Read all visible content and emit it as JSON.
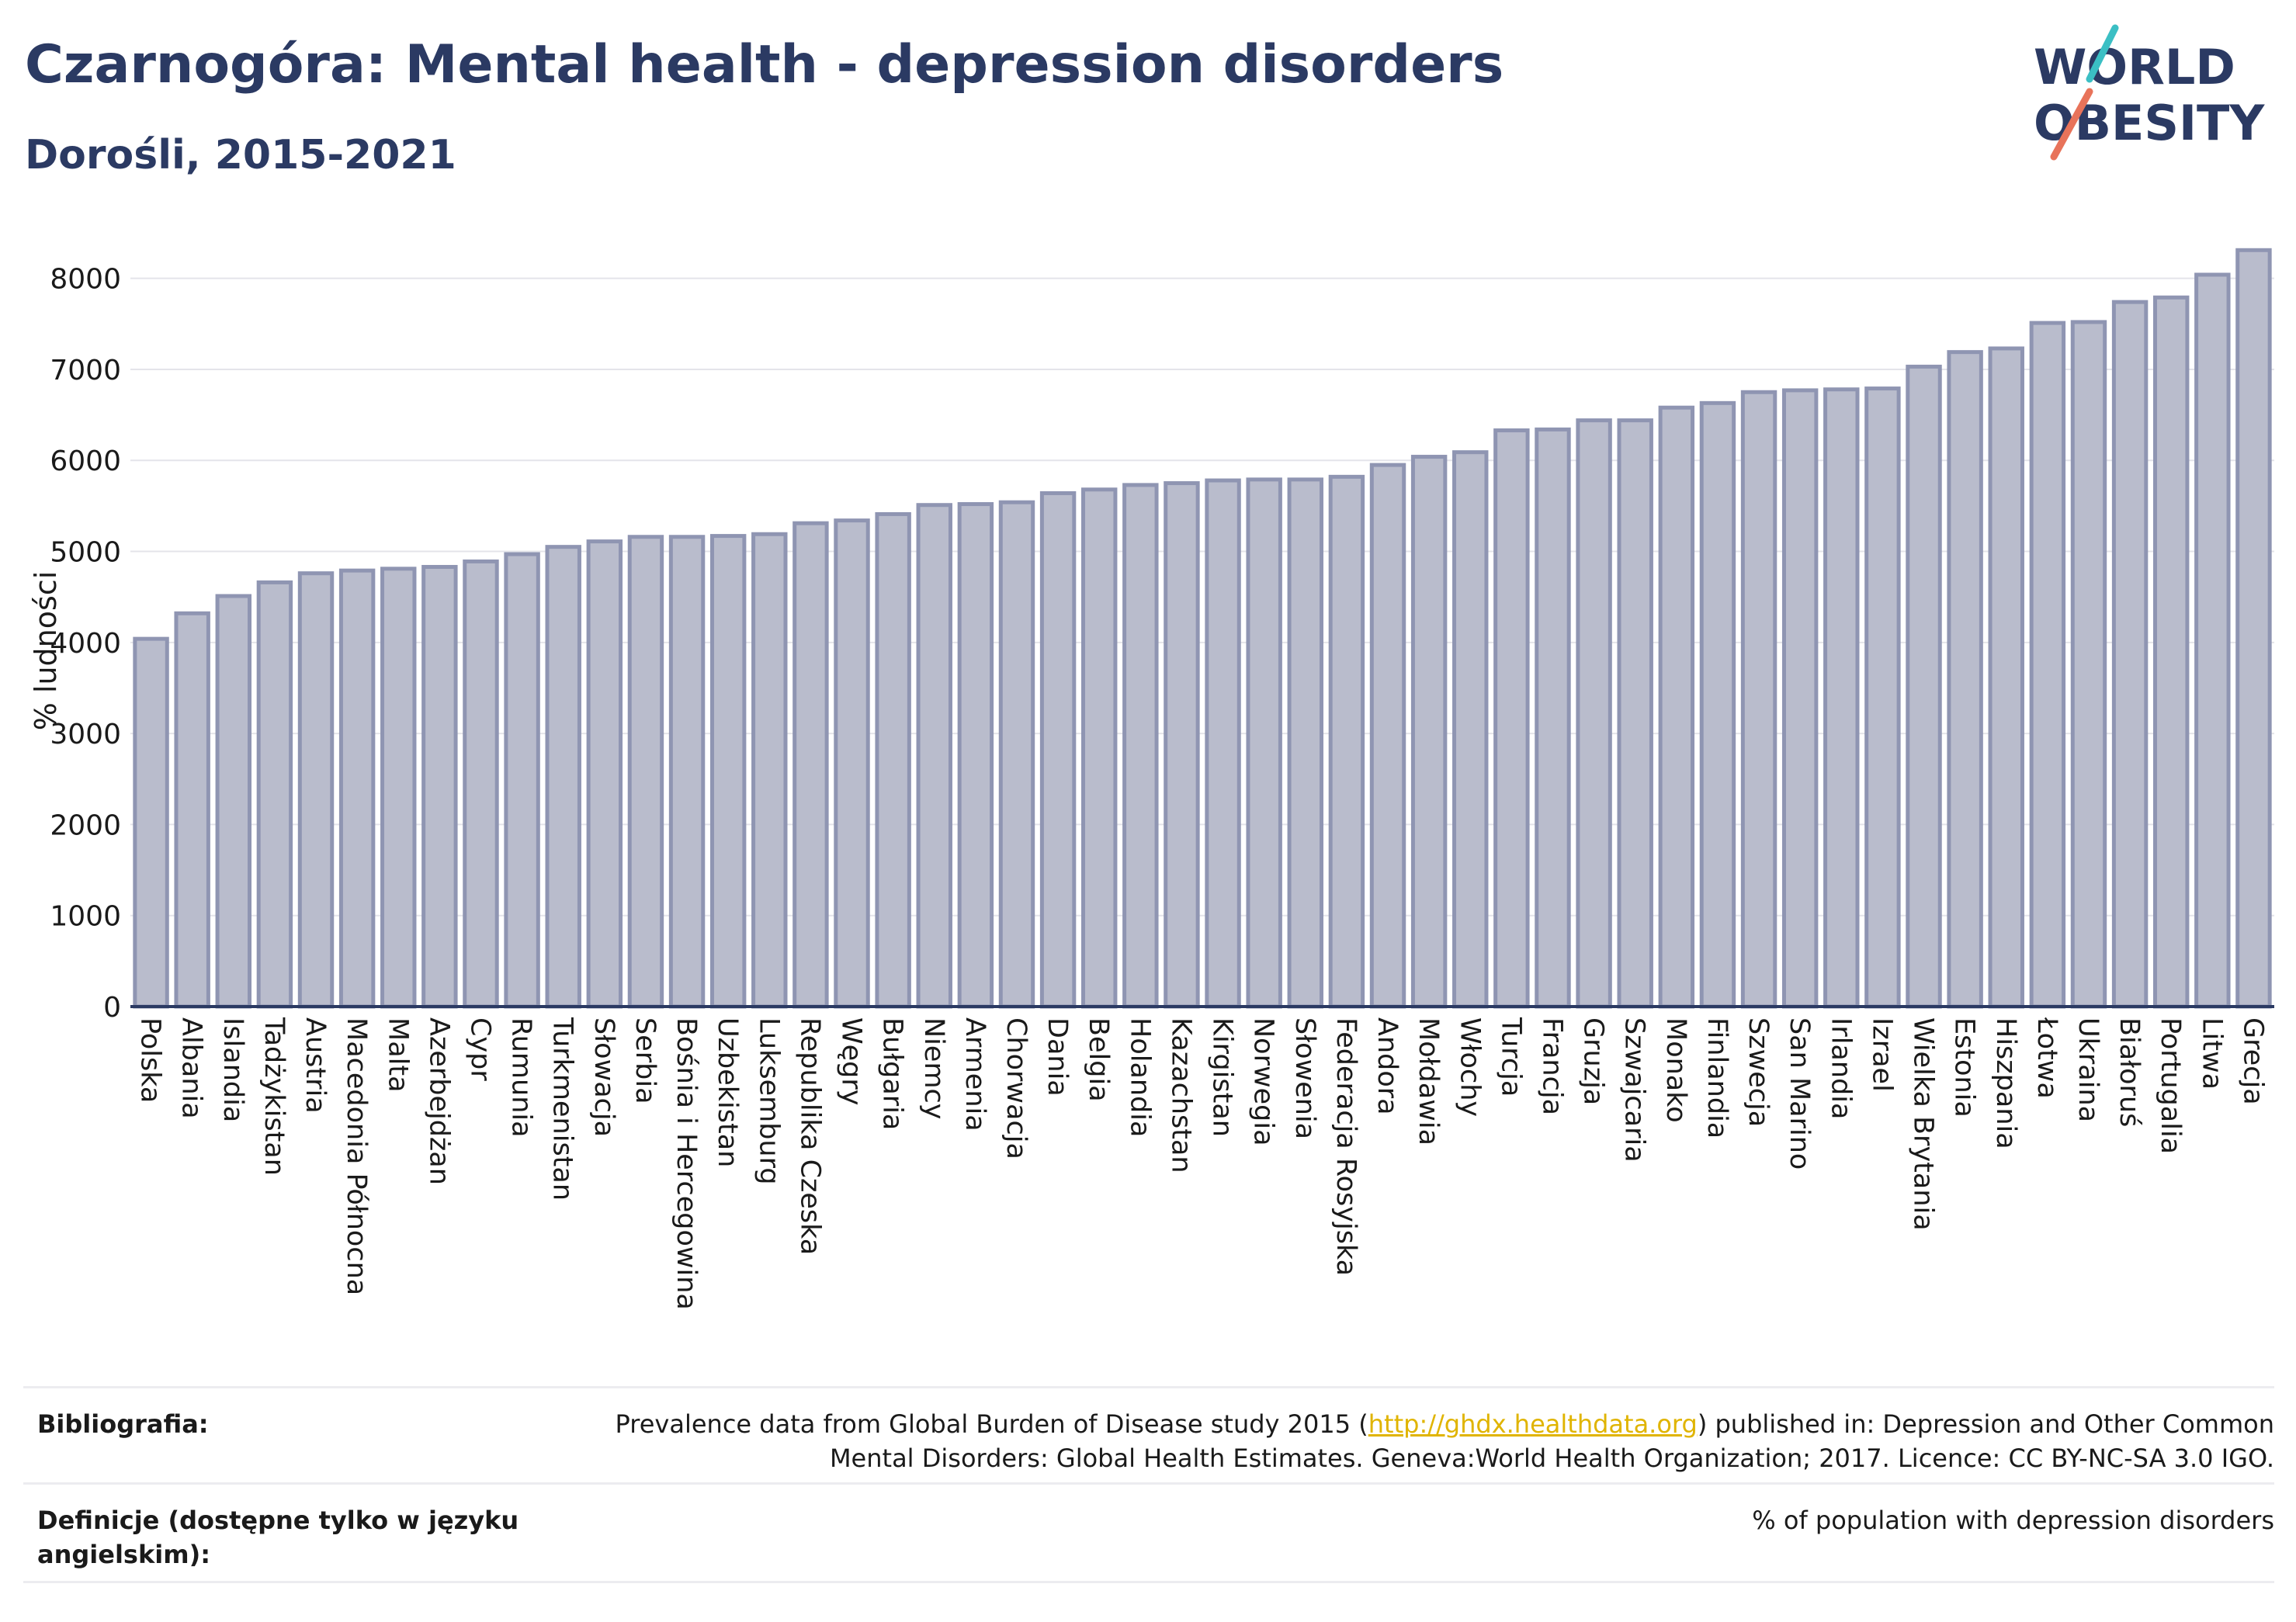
{
  "header": {
    "title": "Czarnogóra: Mental health - depression disorders",
    "subtitle": "Dorośli, 2015-2021"
  },
  "logo": {
    "line1": "WORLD",
    "line2": "OBESITY",
    "accent_teal": "#3bbfc4",
    "accent_coral": "#e8735a",
    "color": "#2b3a63"
  },
  "chart_data": {
    "type": "bar",
    "title": "Czarnogóra: Mental health - depression disorders",
    "subtitle": "Dorośli, 2015-2021",
    "xlabel": "",
    "ylabel": "% ludności",
    "ylim": [
      0,
      8500
    ],
    "yticks": [
      0,
      1000,
      2000,
      3000,
      4000,
      5000,
      6000,
      7000,
      8000
    ],
    "grid": true,
    "bar_color": "#b9bccc",
    "bar_edge": "#8f95b2",
    "categories": [
      "Polska",
      "Albania",
      "Islandia",
      "Tadżykistan",
      "Austria",
      "Macedonia Północna",
      "Malta",
      "Azerbejdżan",
      "Cypr",
      "Rumunia",
      "Turkmenistan",
      "Słowacja",
      "Serbia",
      "Bośnia i Hercegowina",
      "Uzbekistan",
      "Luksemburg",
      "Republika Czeska",
      "Węgry",
      "Bułgaria",
      "Niemcy",
      "Armenia",
      "Chorwacja",
      "Dania",
      "Belgia",
      "Holandia",
      "Kazachstan",
      "Kirgistan",
      "Norwegia",
      "Słowenia",
      "Federacja Rosyjska",
      "Andora",
      "Mołdawia",
      "Włochy",
      "Turcja",
      "Francja",
      "Gruzja",
      "Szwajcaria",
      "Monako",
      "Finlandia",
      "Szwecja",
      "San Marino",
      "Irlandia",
      "Izrael",
      "Wielka Brytania",
      "Estonia",
      "Hiszpania",
      "Łotwa",
      "Ukraina",
      "Białoruś",
      "Portugalia",
      "Litwa",
      "Grecja"
    ],
    "values": [
      4040,
      4320,
      4510,
      4660,
      4760,
      4790,
      4810,
      4830,
      4890,
      4970,
      5050,
      5110,
      5160,
      5160,
      5170,
      5190,
      5310,
      5340,
      5410,
      5510,
      5520,
      5540,
      5640,
      5680,
      5730,
      5750,
      5780,
      5790,
      5790,
      5820,
      5950,
      6040,
      6090,
      6330,
      6340,
      6440,
      6440,
      6580,
      6630,
      6750,
      6770,
      6780,
      6790,
      7030,
      7190,
      7230,
      7510,
      7520,
      7740,
      7790,
      8040,
      8310
    ]
  },
  "footer": {
    "bibliography_label": "Bibliografia:",
    "bibliography_pre": "Prevalence data from Global Burden of Disease study 2015 (",
    "bibliography_link": "http://ghdx.healthdata.org",
    "bibliography_post": ") published in: Depression and Other Common",
    "bibliography_line2": "Mental Disorders: Global Health Estimates. Geneva:World Health Organization; 2017. Licence: CC BY-NC-SA 3.0 IGO.",
    "definitions_label_line1": "Definicje (dostępne tylko w języku",
    "definitions_label_line2": "angielskim):",
    "definitions_text": "% of population with depression disorders"
  }
}
